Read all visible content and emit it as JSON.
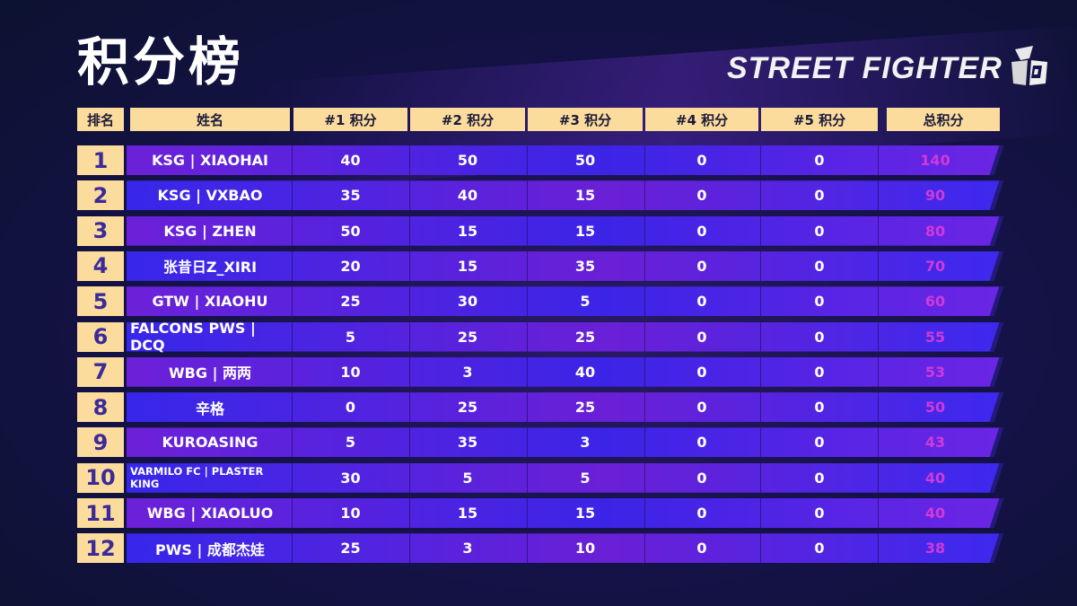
{
  "title": "积分榜",
  "logo": {
    "text": "STREET FIGHTER",
    "icon": "street-fighter-6-emblem"
  },
  "headers": [
    "排名",
    "姓名",
    "#1 积分",
    "#2 积分",
    "#3 积分",
    "#4 积分",
    "#5 积分",
    "总积分"
  ],
  "rows": [
    {
      "rank": "1",
      "name": "KSG | XIAOHAI",
      "r1": "40",
      "r2": "50",
      "r3": "50",
      "r4": "0",
      "r5": "0",
      "total": "140"
    },
    {
      "rank": "2",
      "name": "KSG | VXBAO",
      "r1": "35",
      "r2": "40",
      "r3": "15",
      "r4": "0",
      "r5": "0",
      "total": "90"
    },
    {
      "rank": "3",
      "name": "KSG | ZHEN",
      "r1": "50",
      "r2": "15",
      "r3": "15",
      "r4": "0",
      "r5": "0",
      "total": "80"
    },
    {
      "rank": "4",
      "name": "张昔日Z_XIRI",
      "r1": "20",
      "r2": "15",
      "r3": "35",
      "r4": "0",
      "r5": "0",
      "total": "70"
    },
    {
      "rank": "5",
      "name": "GTW | XIAOHU",
      "r1": "25",
      "r2": "30",
      "r3": "5",
      "r4": "0",
      "r5": "0",
      "total": "60"
    },
    {
      "rank": "6",
      "name": "FALCONS PWS | DCQ",
      "r1": "5",
      "r2": "25",
      "r3": "25",
      "r4": "0",
      "r5": "0",
      "total": "55"
    },
    {
      "rank": "7",
      "name": "WBG | 两两",
      "r1": "10",
      "r2": "3",
      "r3": "40",
      "r4": "0",
      "r5": "0",
      "total": "53"
    },
    {
      "rank": "8",
      "name": "辛格",
      "r1": "0",
      "r2": "25",
      "r3": "25",
      "r4": "0",
      "r5": "0",
      "total": "50"
    },
    {
      "rank": "9",
      "name": "KUROASING",
      "r1": "5",
      "r2": "35",
      "r3": "3",
      "r4": "0",
      "r5": "0",
      "total": "43"
    },
    {
      "rank": "10",
      "name": "VARMILO FC | PLASTER KING",
      "r1": "30",
      "r2": "5",
      "r3": "5",
      "r4": "0",
      "r5": "0",
      "total": "40"
    },
    {
      "rank": "11",
      "name": "WBG | XIAOLUO",
      "r1": "10",
      "r2": "15",
      "r3": "15",
      "r4": "0",
      "r5": "0",
      "total": "40"
    },
    {
      "rank": "12",
      "name": "PWS | 成都杰娃",
      "r1": "25",
      "r2": "3",
      "r3": "10",
      "r4": "0",
      "r5": "0",
      "total": "38"
    }
  ],
  "colors": {
    "header_bg": "#fbdc9c",
    "rank_text": "#3a2a9a",
    "total_text": "#d03ad8",
    "band_blue": "#3727ea",
    "band_purple": "#6a20d6"
  }
}
